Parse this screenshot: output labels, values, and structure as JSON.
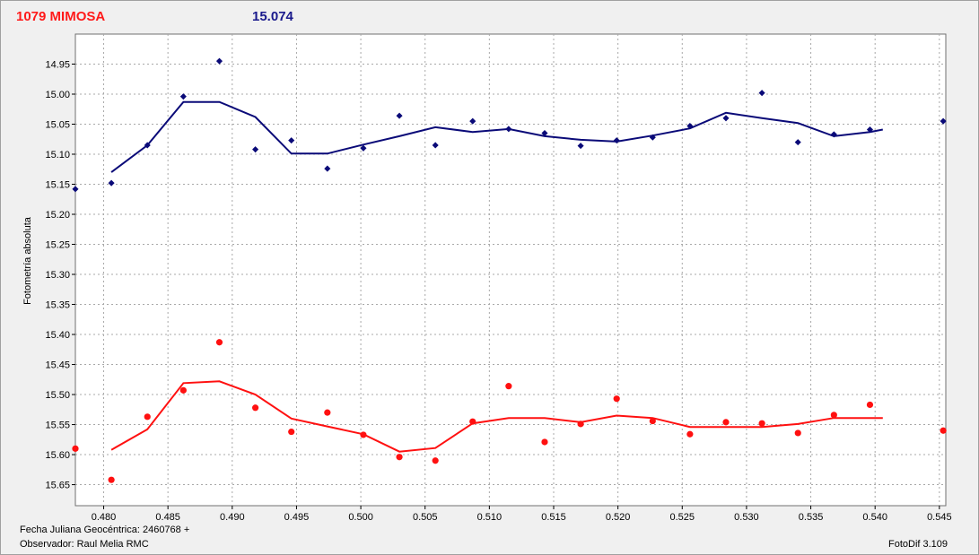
{
  "header": {
    "object_name": "1079 MIMOSA",
    "mean_mag": "15.074"
  },
  "footer": {
    "date_label": "Fecha Juliana Geocéntrica: 2460768 +",
    "observer_label": "Observador: Raul Melia RMC",
    "software_label": "FotoDif 3.109"
  },
  "colors": {
    "series_blue": "#0a0a78",
    "series_red": "#ff1010",
    "grid": "#a8a8a8",
    "plot_bg": "#ffffff"
  },
  "chart_data": {
    "type": "scatter",
    "title": "",
    "xlabel": "",
    "ylabel": "Fotometría absoluta",
    "xlim": [
      0.4778,
      0.5455
    ],
    "ylim": [
      15.685,
      14.9
    ],
    "y_inverted": true,
    "grid": true,
    "x_ticks": [
      "0.480",
      "0.485",
      "0.490",
      "0.495",
      "0.500",
      "0.505",
      "0.510",
      "0.515",
      "0.520",
      "0.525",
      "0.530",
      "0.535",
      "0.540",
      "0.545"
    ],
    "y_ticks": [
      "14.95",
      "15.00",
      "15.05",
      "15.10",
      "15.15",
      "15.20",
      "15.25",
      "15.30",
      "15.35",
      "15.40",
      "15.45",
      "15.50",
      "15.55",
      "15.60",
      "15.65"
    ],
    "series": [
      {
        "color": "#0a0a78",
        "points": [
          [
            0.4778,
            15.158
          ],
          [
            0.4806,
            15.148
          ],
          [
            0.4834,
            15.085
          ],
          [
            0.4862,
            15.004
          ],
          [
            0.489,
            14.945
          ],
          [
            0.4918,
            15.092
          ],
          [
            0.4946,
            15.077
          ],
          [
            0.4974,
            15.124
          ],
          [
            0.5002,
            15.09
          ],
          [
            0.503,
            15.036
          ],
          [
            0.5058,
            15.085
          ],
          [
            0.5087,
            15.045
          ],
          [
            0.5115,
            15.058
          ],
          [
            0.5143,
            15.065
          ],
          [
            0.5171,
            15.086
          ],
          [
            0.5199,
            15.077
          ],
          [
            0.5227,
            15.072
          ],
          [
            0.5256,
            15.053
          ],
          [
            0.5284,
            15.04
          ],
          [
            0.5312,
            14.998
          ],
          [
            0.534,
            15.08
          ],
          [
            0.5368,
            15.067
          ],
          [
            0.5396,
            15.059
          ],
          [
            0.5453,
            15.045
          ]
        ],
        "trend": [
          [
            0.4806,
            15.13
          ],
          [
            0.4834,
            15.085
          ],
          [
            0.4862,
            15.013
          ],
          [
            0.489,
            15.013
          ],
          [
            0.4918,
            15.038
          ],
          [
            0.4946,
            15.099
          ],
          [
            0.4974,
            15.099
          ],
          [
            0.5002,
            15.084
          ],
          [
            0.503,
            15.07
          ],
          [
            0.5058,
            15.055
          ],
          [
            0.5087,
            15.063
          ],
          [
            0.5115,
            15.058
          ],
          [
            0.5143,
            15.07
          ],
          [
            0.5171,
            15.076
          ],
          [
            0.5199,
            15.079
          ],
          [
            0.5227,
            15.069
          ],
          [
            0.5256,
            15.057
          ],
          [
            0.5284,
            15.031
          ],
          [
            0.5312,
            15.04
          ],
          [
            0.534,
            15.048
          ],
          [
            0.5368,
            15.07
          ],
          [
            0.5396,
            15.063
          ],
          [
            0.5406,
            15.059
          ]
        ]
      },
      {
        "color": "#ff1010",
        "points": [
          [
            0.4778,
            15.59
          ],
          [
            0.4806,
            15.642
          ],
          [
            0.4834,
            15.537
          ],
          [
            0.4862,
            15.493
          ],
          [
            0.489,
            15.413
          ],
          [
            0.4918,
            15.522
          ],
          [
            0.4946,
            15.562
          ],
          [
            0.4974,
            15.53
          ],
          [
            0.5002,
            15.567
          ],
          [
            0.503,
            15.604
          ],
          [
            0.5058,
            15.61
          ],
          [
            0.5087,
            15.545
          ],
          [
            0.5115,
            15.486
          ],
          [
            0.5143,
            15.579
          ],
          [
            0.5171,
            15.549
          ],
          [
            0.5199,
            15.507
          ],
          [
            0.5227,
            15.544
          ],
          [
            0.5256,
            15.566
          ],
          [
            0.5284,
            15.546
          ],
          [
            0.5312,
            15.548
          ],
          [
            0.534,
            15.564
          ],
          [
            0.5368,
            15.534
          ],
          [
            0.5396,
            15.517
          ],
          [
            0.5453,
            15.56
          ]
        ],
        "trend": [
          [
            0.4806,
            15.592
          ],
          [
            0.4834,
            15.558
          ],
          [
            0.4862,
            15.481
          ],
          [
            0.489,
            15.478
          ],
          [
            0.4918,
            15.5
          ],
          [
            0.4946,
            15.54
          ],
          [
            0.4974,
            15.553
          ],
          [
            0.5002,
            15.566
          ],
          [
            0.503,
            15.595
          ],
          [
            0.5058,
            15.589
          ],
          [
            0.5087,
            15.548
          ],
          [
            0.5115,
            15.539
          ],
          [
            0.5143,
            15.539
          ],
          [
            0.5171,
            15.546
          ],
          [
            0.5199,
            15.535
          ],
          [
            0.5227,
            15.539
          ],
          [
            0.5256,
            15.554
          ],
          [
            0.5284,
            15.554
          ],
          [
            0.5312,
            15.554
          ],
          [
            0.534,
            15.549
          ],
          [
            0.5368,
            15.539
          ],
          [
            0.5406,
            15.539
          ]
        ]
      }
    ]
  }
}
